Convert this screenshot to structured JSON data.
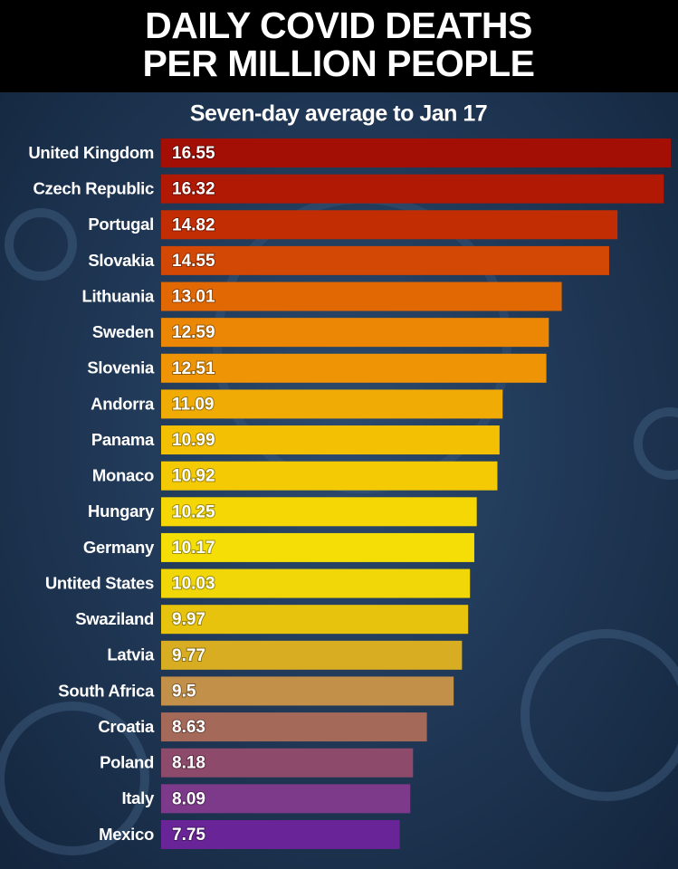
{
  "chart_data": {
    "type": "bar",
    "orientation": "horizontal",
    "title": [
      "DAILY COVID DEATHS",
      "PER MILLION PEOPLE"
    ],
    "subtitle": "Seven-day average to Jan 17",
    "categories": [
      "United Kingdom",
      "Czech Republic",
      "Portugal",
      "Slovakia",
      "Lithuania",
      "Sweden",
      "Slovenia",
      "Andorra",
      "Panama",
      "Monaco",
      "Hungary",
      "Germany",
      "Untited States",
      "Swaziland",
      "Latvia",
      "South Africa",
      "Croatia",
      "Poland",
      "Italy",
      "Mexico"
    ],
    "values": [
      16.55,
      16.32,
      14.82,
      14.55,
      13.01,
      12.59,
      12.51,
      11.09,
      10.99,
      10.92,
      10.25,
      10.17,
      10.03,
      9.97,
      9.77,
      9.5,
      8.63,
      8.18,
      8.09,
      7.75
    ],
    "colors": [
      "#a30f05",
      "#b11905",
      "#c32d04",
      "#d24804",
      "#e26803",
      "#ec8705",
      "#ef9405",
      "#f0ac05",
      "#f3c004",
      "#f4ca05",
      "#f4d705",
      "#f4de05",
      "#f1d707",
      "#e7c30e",
      "#d8ad22",
      "#c3904a",
      "#a5695a",
      "#8d4a6a",
      "#7e3a8a",
      "#692597"
    ]
  }
}
